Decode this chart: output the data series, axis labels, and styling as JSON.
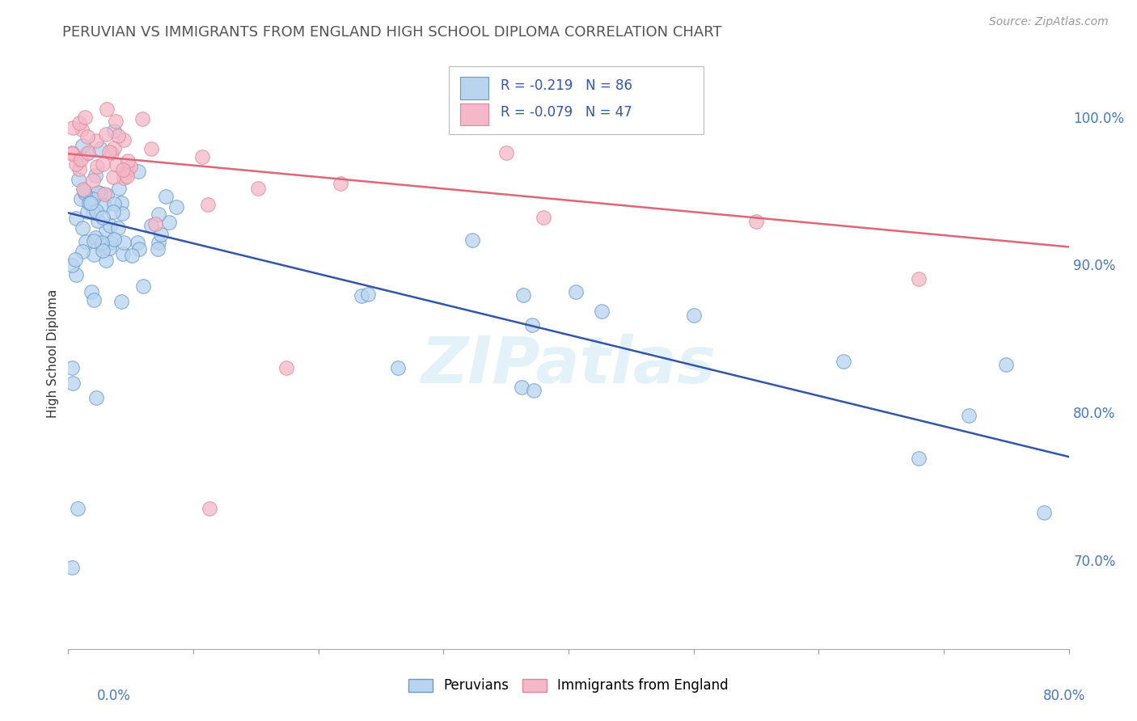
{
  "title": "PERUVIAN VS IMMIGRANTS FROM ENGLAND HIGH SCHOOL DIPLOMA CORRELATION CHART",
  "source": "Source: ZipAtlas.com",
  "ylabel": "High School Diploma",
  "ytick_labels": [
    "70.0%",
    "80.0%",
    "90.0%",
    "100.0%"
  ],
  "ytick_values": [
    0.7,
    0.8,
    0.9,
    1.0
  ],
  "xlim": [
    0.0,
    0.8
  ],
  "ylim": [
    0.64,
    1.04
  ],
  "peruvian_color": "#b8d4ee",
  "peruvian_edge": "#6699cc",
  "england_color": "#f4b8c8",
  "england_edge": "#dd8899",
  "blue_line_color": "#3355aa",
  "pink_line_color": "#dd6677",
  "watermark": "ZIPatlas",
  "R_peru": -0.219,
  "N_peru": 86,
  "R_england": -0.079,
  "N_england": 47,
  "blue_line_x0": 0.0,
  "blue_line_y0": 0.935,
  "blue_line_x1": 0.8,
  "blue_line_y1": 0.77,
  "pink_line_x0": 0.0,
  "pink_line_y0": 0.975,
  "pink_line_x1": 0.8,
  "pink_line_y1": 0.912
}
